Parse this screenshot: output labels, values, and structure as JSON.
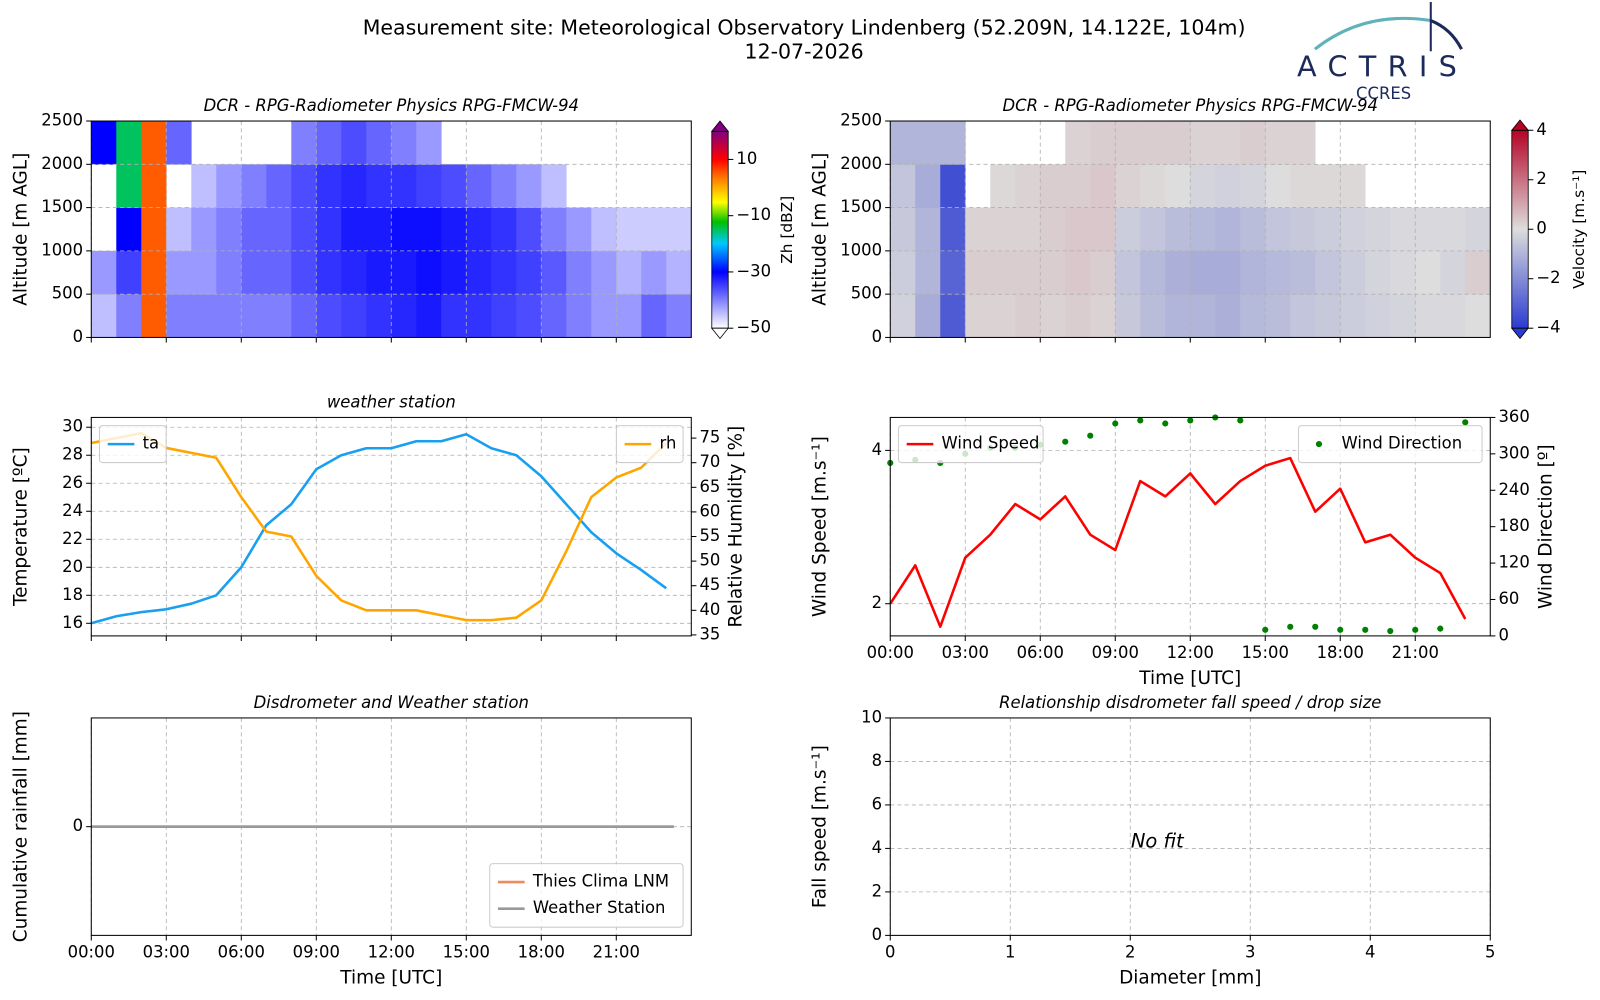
{
  "header": {
    "title": "Measurement site: Meteorological Observatory Lindenberg (52.209N, 14.122E, 104m)",
    "date": "12-07-2026",
    "logo": "ACTRIS",
    "logo_sub": "CCRES"
  },
  "chart_data": [
    {
      "type": "heatmap",
      "title": "DCR - RPG-Radiometer Physics RPG-FMCW-94",
      "ylabel": "Altitude [m AGL]",
      "xlim": [
        0,
        24
      ],
      "xticks": [
        0,
        3,
        6,
        9,
        12,
        15,
        18,
        21
      ],
      "show_xticklabels": false,
      "ylim": [
        0,
        2500
      ],
      "yticks": [
        0,
        500,
        1000,
        1500,
        2000,
        2500
      ],
      "grid": true,
      "x": [
        0,
        1,
        2,
        3,
        4,
        5,
        6,
        7,
        8,
        9,
        10,
        11,
        12,
        13,
        14,
        15,
        16,
        17,
        18,
        19,
        20,
        21,
        22,
        23
      ],
      "y": [
        0,
        500,
        1000,
        1500,
        2000
      ],
      "values": [
        [
          -45,
          -42,
          null,
          null,
          -30
        ],
        [
          -40,
          -35,
          -30,
          -15,
          -15
        ],
        [
          5,
          5,
          5,
          5,
          5
        ],
        [
          -40,
          -42,
          -45,
          null,
          -38
        ],
        [
          -40,
          -42,
          -42,
          -45,
          null
        ],
        [
          -40,
          -40,
          -40,
          -42,
          null
        ],
        [
          -40,
          -38,
          -38,
          -40,
          null
        ],
        [
          -40,
          -38,
          -38,
          -38,
          null
        ],
        [
          -38,
          -36,
          -36,
          -36,
          -40
        ],
        [
          -36,
          -34,
          -34,
          -34,
          -38
        ],
        [
          -35,
          -33,
          -32,
          -33,
          -36
        ],
        [
          -34,
          -32,
          -32,
          -34,
          -38
        ],
        [
          -33,
          -32,
          -31,
          -34,
          -40
        ],
        [
          -32,
          -31,
          -31,
          -35,
          -42
        ],
        [
          -34,
          -32,
          -32,
          -36,
          null
        ],
        [
          -34,
          -33,
          -33,
          -38,
          null
        ],
        [
          -35,
          -34,
          -34,
          -40,
          null
        ],
        [
          -36,
          -35,
          -36,
          -42,
          null
        ],
        [
          -38,
          -37,
          -40,
          -45,
          null
        ],
        [
          -40,
          -40,
          -42,
          null,
          null
        ],
        [
          -42,
          -42,
          -45,
          null,
          null
        ],
        [
          -42,
          -44,
          -46,
          null,
          null
        ],
        [
          -38,
          -42,
          -46,
          null,
          null
        ],
        [
          -40,
          -44,
          -46,
          null,
          null
        ]
      ],
      "colorbar": {
        "label": "Zh [dBZ]",
        "lim": [
          -50,
          20
        ],
        "colormap": "jet",
        "ticks": [
          {
            "value": -50,
            "label": "−50"
          },
          {
            "value": -30,
            "label": "−30"
          },
          {
            "value": -10,
            "label": "−10"
          },
          10
        ]
      }
    },
    {
      "type": "heatmap",
      "title": "DCR - RPG-Radiometer Physics RPG-FMCW-94",
      "ylabel": "Altitude [m AGL]",
      "xlim": [
        0,
        24
      ],
      "xticks": [
        0,
        3,
        6,
        9,
        12,
        15,
        18,
        21
      ],
      "show_xticklabels": false,
      "ylim": [
        0,
        2500
      ],
      "yticks": [
        0,
        500,
        1000,
        1500,
        2000,
        2500
      ],
      "grid": true,
      "x": [
        0,
        1,
        2,
        3,
        4,
        5,
        6,
        7,
        8,
        9,
        10,
        11,
        12,
        13,
        14,
        15,
        16,
        17,
        18,
        19,
        20,
        21,
        22,
        23
      ],
      "y": [
        0,
        500,
        1000,
        1500,
        2000
      ],
      "values": [
        [
          -0.3,
          -0.4,
          -0.5,
          -0.6,
          -1.0
        ],
        [
          -1.2,
          -1.0,
          -1.0,
          -1.2,
          -1.0
        ],
        [
          -3.2,
          -3.0,
          -3.2,
          -3.5,
          -1.0
        ],
        [
          0.2,
          0.3,
          0.2,
          null,
          null
        ],
        [
          0.2,
          0.3,
          0.2,
          0.1,
          null
        ],
        [
          0.3,
          0.3,
          0.2,
          0.2,
          null
        ],
        [
          0.2,
          0.3,
          0.3,
          0.3,
          null
        ],
        [
          0.3,
          0.4,
          0.4,
          0.3,
          0.2
        ],
        [
          0.2,
          0.3,
          0.4,
          0.4,
          0.3
        ],
        [
          -0.5,
          -0.6,
          -0.4,
          0.2,
          0.3
        ],
        [
          -0.8,
          -0.9,
          -0.6,
          0.1,
          0.3
        ],
        [
          -1.0,
          -1.1,
          -0.8,
          0.0,
          0.3
        ],
        [
          -1.0,
          -1.2,
          -0.9,
          -0.2,
          0.2
        ],
        [
          -1.1,
          -1.2,
          -1.0,
          -0.3,
          0.2
        ],
        [
          -0.9,
          -1.0,
          -0.8,
          -0.2,
          0.3
        ],
        [
          -0.8,
          -0.9,
          -0.6,
          0.0,
          0.2
        ],
        [
          -0.6,
          -0.8,
          -0.5,
          0.1,
          0.2
        ],
        [
          -0.5,
          -0.6,
          -0.4,
          0.1,
          null
        ],
        [
          -0.4,
          -0.4,
          -0.3,
          0.1,
          null
        ],
        [
          -0.3,
          -0.2,
          -0.2,
          null,
          null
        ],
        [
          -0.2,
          -0.1,
          -0.1,
          null,
          null
        ],
        [
          -0.1,
          0.0,
          -0.1,
          null,
          null
        ],
        [
          -0.1,
          -0.2,
          -0.1,
          null,
          null
        ],
        [
          0.0,
          0.3,
          -0.2,
          null,
          null
        ]
      ],
      "colorbar": {
        "label": "Velocity [m.s⁻¹]",
        "lim": [
          -4,
          4
        ],
        "colormap": "coolwarm",
        "ticks": [
          {
            "value": -4,
            "label": "−4"
          },
          {
            "value": -2,
            "label": "−2"
          },
          0,
          2,
          4
        ]
      }
    },
    {
      "type": "line",
      "title": "weather station",
      "ylabel": "Temperature [ºC]",
      "y2label": "Relative Humidity [%]",
      "xlim": [
        0,
        24
      ],
      "xticks": [
        0,
        3,
        6,
        9,
        12,
        15,
        18,
        21
      ],
      "show_xticklabels": false,
      "ylim": [
        15.1,
        30.7
      ],
      "yticks": [
        16,
        18,
        20,
        22,
        24,
        26,
        28,
        30
      ],
      "y2lim": [
        34.8,
        79.2
      ],
      "y2ticks": [
        35,
        40,
        45,
        50,
        55,
        60,
        65,
        70,
        75
      ],
      "grid": true,
      "x": [
        0,
        1,
        2,
        3,
        4,
        5,
        6,
        7,
        8,
        9,
        10,
        11,
        12,
        13,
        14,
        15,
        16,
        17,
        18,
        19,
        20,
        21,
        22,
        23
      ],
      "series": [
        {
          "name": "ta",
          "color": "#1a9ff0",
          "kind": "line",
          "legend": "upper left",
          "values": [
            16.0,
            16.5,
            16.8,
            17.0,
            17.4,
            18.0,
            20.0,
            23.0,
            24.5,
            27.0,
            28.0,
            28.5,
            28.5,
            29.0,
            29.0,
            29.5,
            28.5,
            28.0,
            26.5,
            24.5,
            22.5,
            21.0,
            19.8,
            18.5
          ]
        },
        {
          "name": "rh",
          "color": "#ffa500",
          "kind": "line",
          "axis": "y2",
          "legend": "upper right",
          "values": [
            74,
            75,
            76,
            73,
            72,
            71,
            63,
            56,
            55,
            47,
            42,
            40,
            40,
            40,
            39,
            38,
            38,
            38.5,
            42,
            52,
            63,
            67,
            69,
            74
          ]
        }
      ]
    },
    {
      "type": "line",
      "xlabel": "Time [UTC]",
      "ylabel": "Wind Speed [m.s⁻¹]",
      "y2label": "Wind Direction [º]",
      "xlim": [
        0,
        24
      ],
      "xticks": [
        {
          "value": 0,
          "label": "00:00"
        },
        {
          "value": 3,
          "label": "03:00"
        },
        {
          "value": 6,
          "label": "06:00"
        },
        {
          "value": 9,
          "label": "09:00"
        },
        {
          "value": 12,
          "label": "12:00"
        },
        {
          "value": 15,
          "label": "15:00"
        },
        {
          "value": 18,
          "label": "18:00"
        },
        {
          "value": 21,
          "label": "21:00"
        }
      ],
      "ylim": [
        1.58,
        4.43
      ],
      "yticks": [
        2,
        4
      ],
      "y2lim": [
        0,
        360
      ],
      "y2ticks": [
        0,
        60,
        120,
        180,
        240,
        300,
        360
      ],
      "grid": true,
      "x": [
        0,
        1,
        2,
        3,
        4,
        5,
        6,
        7,
        8,
        9,
        10,
        11,
        12,
        13,
        14,
        15,
        16,
        17,
        18,
        19,
        20,
        21,
        22,
        23
      ],
      "series": [
        {
          "name": "Wind Speed",
          "color": "#ff0000",
          "kind": "line",
          "legend": "upper left",
          "values": [
            2.0,
            2.5,
            1.7,
            2.6,
            2.9,
            3.3,
            3.1,
            3.4,
            2.9,
            2.7,
            3.6,
            3.4,
            3.7,
            3.3,
            3.6,
            3.8,
            3.9,
            3.2,
            3.5,
            2.8,
            2.9,
            2.6,
            2.4,
            1.8
          ]
        },
        {
          "name": "Wind Direction",
          "color": "#008000",
          "kind": "scatter",
          "axis": "y2",
          "legend": "upper right",
          "values": [
            285,
            290,
            285,
            300,
            310,
            310,
            315,
            320,
            330,
            350,
            355,
            350,
            355,
            360,
            355,
            10,
            15,
            15,
            10,
            10,
            8,
            10,
            12,
            352
          ]
        }
      ]
    },
    {
      "type": "line",
      "title": "Disdrometer and Weather station",
      "xlabel": "Time [UTC]",
      "ylabel": "Cumulative rainfall [mm]",
      "xlim": [
        0,
        24
      ],
      "xticks": [
        {
          "value": 0,
          "label": "00:00"
        },
        {
          "value": 3,
          "label": "03:00"
        },
        {
          "value": 6,
          "label": "06:00"
        },
        {
          "value": 9,
          "label": "09:00"
        },
        {
          "value": 12,
          "label": "12:00"
        },
        {
          "value": 15,
          "label": "15:00"
        },
        {
          "value": 18,
          "label": "18:00"
        },
        {
          "value": 21,
          "label": "21:00"
        }
      ],
      "ylim": [
        -1,
        1
      ],
      "yticks": [
        0
      ],
      "grid": true,
      "x": [
        0,
        23.3
      ],
      "series": [
        {
          "name": "Thies Clima LNM",
          "color": "#f08a5d",
          "kind": "line",
          "legend": "lower right",
          "values": [
            0,
            0
          ]
        },
        {
          "name": "Weather Station",
          "color": "#999999",
          "kind": "line",
          "legend": "lower right",
          "values": [
            0,
            0
          ]
        }
      ]
    },
    {
      "type": "scatter",
      "title": "Relationship disdrometer fall speed / drop size",
      "xlabel": "Diameter [mm]",
      "ylabel": "Fall speed [m.s⁻¹]",
      "xlim": [
        0,
        5
      ],
      "xticks": [
        0,
        1,
        2,
        3,
        4,
        5
      ],
      "ylim": [
        0,
        10
      ],
      "yticks": [
        0,
        2,
        4,
        6,
        8,
        10
      ],
      "grid": true,
      "annotations": [
        "No fit"
      ]
    }
  ]
}
